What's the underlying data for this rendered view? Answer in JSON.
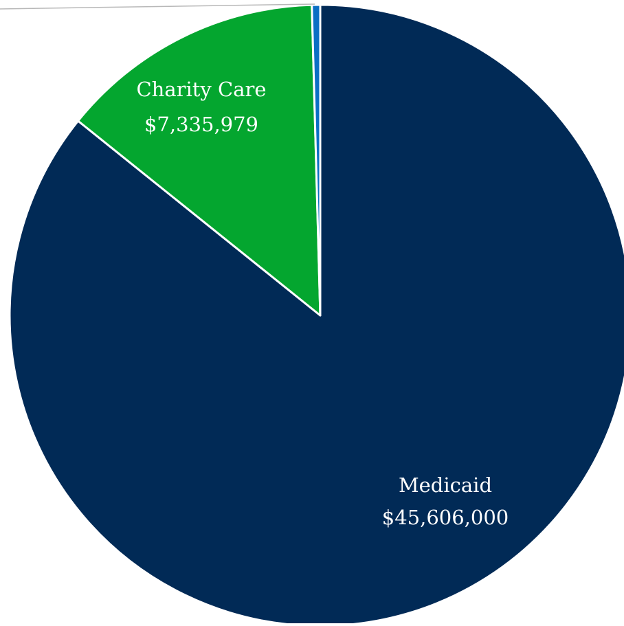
{
  "chart_data": {
    "type": "pie",
    "title": "",
    "series": [
      {
        "slices": [
          {
            "label": "Medicaid",
            "value": 45606000,
            "value_label": "$45,606,000",
            "color": "#012a56",
            "label_color": "#ffffff",
            "show_label": true
          },
          {
            "label": "Charity Care",
            "value": 7335979,
            "value_label": "$7,335,979",
            "color": "#04a62f",
            "label_color": "#ffffff",
            "show_label": true
          },
          {
            "label": "",
            "value": 230000,
            "value_label": "",
            "color": "#0b6fc4",
            "label_color": "#ffffff",
            "show_label": false
          }
        ]
      }
    ],
    "start_angle_deg": 0,
    "direction": "clockwise",
    "slice_border_color": "#ffffff",
    "leader_line_color": "#b8b8b8",
    "legend": "none"
  }
}
